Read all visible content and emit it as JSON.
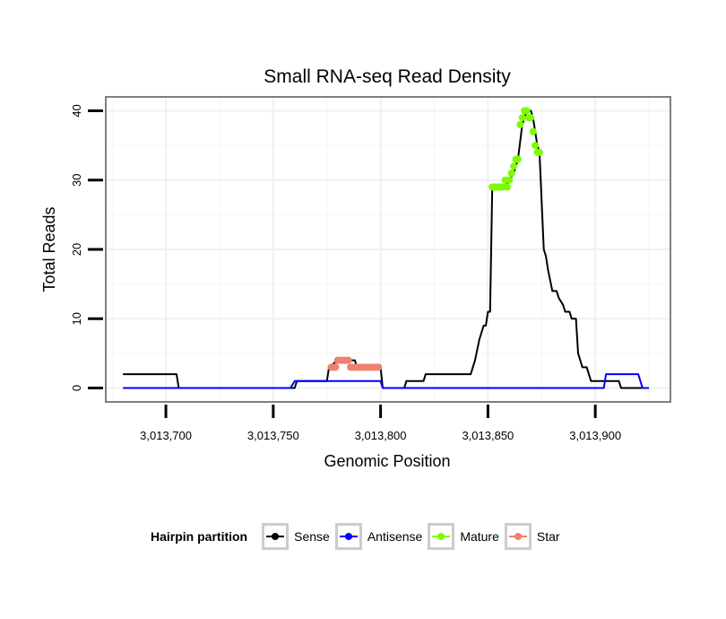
{
  "chart_data": {
    "type": "line",
    "title": "Small RNA-seq Read Density",
    "xlabel": "Genomic Position",
    "ylabel": "Total Reads",
    "xlim": [
      3013672,
      3013935
    ],
    "ylim": [
      -2,
      42
    ],
    "x_ticks": [
      3013700,
      3013750,
      3013800,
      3013850,
      3013900
    ],
    "x_tick_labels": [
      "3,013,700",
      "3,013,750",
      "3,013,800",
      "3,013,850",
      "3,013,900"
    ],
    "y_ticks": [
      0,
      10,
      20,
      30,
      40
    ],
    "y_tick_labels": [
      "0",
      "10",
      "20",
      "30",
      "40"
    ],
    "grid": true,
    "legend_title": "Hairpin partition",
    "legend_position": "bottom",
    "series": [
      {
        "name": "Sense",
        "color": "#000000",
        "style": "step-line",
        "points": [
          [
            3013680,
            2
          ],
          [
            3013705,
            2
          ],
          [
            3013706,
            0
          ],
          [
            3013760,
            0
          ],
          [
            3013761,
            1
          ],
          [
            3013775,
            1
          ],
          [
            3013776,
            3
          ],
          [
            3013780,
            4
          ],
          [
            3013788,
            4
          ],
          [
            3013789,
            3
          ],
          [
            3013800,
            3
          ],
          [
            3013801,
            0
          ],
          [
            3013811,
            0
          ],
          [
            3013812,
            1
          ],
          [
            3013820,
            1
          ],
          [
            3013821,
            2
          ],
          [
            3013842,
            2
          ],
          [
            3013844,
            4
          ],
          [
            3013846,
            7
          ],
          [
            3013848,
            9
          ],
          [
            3013849,
            9
          ],
          [
            3013850,
            11
          ],
          [
            3013851,
            11
          ],
          [
            3013852,
            29
          ],
          [
            3013855,
            29
          ],
          [
            3013858,
            29
          ],
          [
            3013860,
            30
          ],
          [
            3013862,
            31
          ],
          [
            3013864,
            33
          ],
          [
            3013866,
            38
          ],
          [
            3013868,
            40
          ],
          [
            3013870,
            40
          ],
          [
            3013871,
            39
          ],
          [
            3013873,
            35
          ],
          [
            3013874,
            34
          ],
          [
            3013876,
            20
          ],
          [
            3013877,
            19
          ],
          [
            3013878,
            17
          ],
          [
            3013880,
            14
          ],
          [
            3013882,
            14
          ],
          [
            3013883,
            13
          ],
          [
            3013885,
            12
          ],
          [
            3013886,
            11
          ],
          [
            3013888,
            11
          ],
          [
            3013889,
            10
          ],
          [
            3013891,
            10
          ],
          [
            3013892,
            5
          ],
          [
            3013894,
            3
          ],
          [
            3013896,
            3
          ],
          [
            3013898,
            1
          ],
          [
            3013904,
            1
          ],
          [
            3013911,
            1
          ],
          [
            3013912,
            0
          ],
          [
            3013917,
            0
          ],
          [
            3013922,
            0
          ]
        ]
      },
      {
        "name": "Antisense",
        "color": "#0000ff",
        "style": "step-line",
        "points": [
          [
            3013680,
            0
          ],
          [
            3013758,
            0
          ],
          [
            3013760,
            1
          ],
          [
            3013800,
            1
          ],
          [
            3013801,
            0
          ],
          [
            3013904,
            0
          ],
          [
            3013905,
            2
          ],
          [
            3013920,
            2
          ],
          [
            3013922,
            0
          ],
          [
            3013925,
            0
          ]
        ]
      },
      {
        "name": "Mature",
        "color": "#7cfc00",
        "style": "points",
        "points": [
          [
            3013852,
            29
          ],
          [
            3013853,
            29
          ],
          [
            3013854,
            29
          ],
          [
            3013855,
            29
          ],
          [
            3013856,
            29
          ],
          [
            3013857,
            29
          ],
          [
            3013858,
            30
          ],
          [
            3013859,
            29
          ],
          [
            3013860,
            30
          ],
          [
            3013861,
            31
          ],
          [
            3013862,
            32
          ],
          [
            3013863,
            33
          ],
          [
            3013864,
            33
          ],
          [
            3013865,
            38
          ],
          [
            3013866,
            39
          ],
          [
            3013867,
            40
          ],
          [
            3013868,
            40
          ],
          [
            3013869,
            39
          ],
          [
            3013870,
            39
          ],
          [
            3013871,
            37
          ],
          [
            3013872,
            35
          ],
          [
            3013873,
            34
          ],
          [
            3013874,
            34
          ]
        ]
      },
      {
        "name": "Star",
        "color": "#f08070",
        "style": "points",
        "points": [
          [
            3013777,
            3
          ],
          [
            3013778,
            3
          ],
          [
            3013779,
            3
          ],
          [
            3013780,
            4
          ],
          [
            3013781,
            4
          ],
          [
            3013782,
            4
          ],
          [
            3013783,
            4
          ],
          [
            3013784,
            4
          ],
          [
            3013785,
            4
          ],
          [
            3013786,
            3
          ],
          [
            3013787,
            3
          ],
          [
            3013788,
            3
          ],
          [
            3013789,
            3
          ],
          [
            3013790,
            3
          ],
          [
            3013791,
            3
          ],
          [
            3013792,
            3
          ],
          [
            3013793,
            3
          ],
          [
            3013794,
            3
          ],
          [
            3013795,
            3
          ],
          [
            3013796,
            3
          ],
          [
            3013797,
            3
          ],
          [
            3013798,
            3
          ],
          [
            3013799,
            3
          ]
        ]
      }
    ]
  },
  "legend": {
    "title": "Hairpin partition",
    "items": [
      {
        "label": "Sense",
        "color": "#000000"
      },
      {
        "label": "Antisense",
        "color": "#0000ff"
      },
      {
        "label": "Mature",
        "color": "#7cfc00"
      },
      {
        "label": "Star",
        "color": "#f08070"
      }
    ]
  }
}
